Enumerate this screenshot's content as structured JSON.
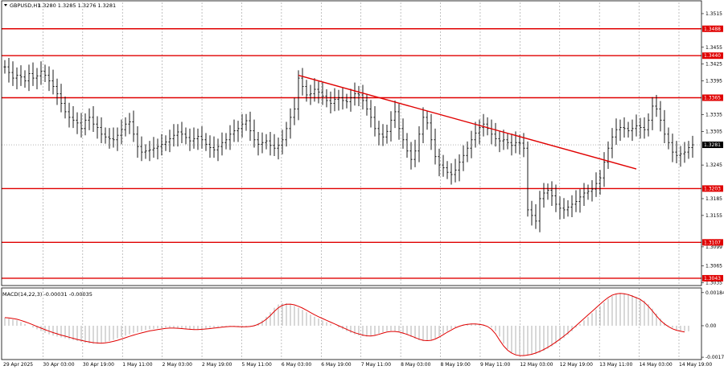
{
  "title": {
    "symbol": "GBPUSD,H1",
    "ohlc": "1.3280 1.3285 1.3276 1.3281"
  },
  "macd_label": "MACD(14,22,3) -0.00031 -0.00035",
  "colors": {
    "level": "#e00000",
    "trend": "#e00000",
    "bars": "#000000",
    "grid": "#9a9a9a",
    "macd_hist": "#b8b8b8",
    "macd_signal": "#e00000",
    "current_badge": "#000000"
  },
  "chart_data": {
    "type": "line",
    "instrument": "GBPUSD",
    "timeframe": "H1",
    "price_axis": {
      "ylim": [
        1.303,
        1.3535
      ],
      "ticks": [
        "1.3515",
        "1.3455",
        "1.3425",
        "1.3395",
        "1.3335",
        "1.3305",
        "1.3245",
        "1.3185",
        "1.3155",
        "1.3099",
        "1.3065",
        "1.3035"
      ]
    },
    "time_axis": {
      "labels": [
        "29 Apr 2025",
        "30 Apr 03:00",
        "30 Apr 19:00",
        "1 May 11:00",
        "2 May 03:00",
        "2 May 19:00",
        "5 May 11:00",
        "6 May 03:00",
        "6 May 19:00",
        "7 May 11:00",
        "8 May 03:00",
        "8 May 19:00",
        "9 May 11:00",
        "12 May 03:00",
        "12 May 19:00",
        "13 May 11:00",
        "14 May 03:00",
        "14 May 19:00"
      ]
    },
    "levels": [
      {
        "value": 1.3488,
        "label": "1.3488"
      },
      {
        "value": 1.344,
        "label": "1.3440"
      },
      {
        "value": 1.3365,
        "label": "1.3365"
      },
      {
        "value": 1.3203,
        "label": "1.3203"
      },
      {
        "value": 1.3107,
        "label": "1.3107"
      },
      {
        "value": 1.3043,
        "label": "1.3043"
      }
    ],
    "current_price": {
      "value": 1.3281,
      "label": "1.3281"
    },
    "trendline": {
      "from_index": 73,
      "from_price": 1.3405,
      "to_index": 157,
      "to_price": 1.3238
    },
    "price_series": [
      1.342,
      1.341,
      1.34,
      1.3405,
      1.3402,
      1.3395,
      1.3408,
      1.34,
      1.3404,
      1.3412,
      1.3405,
      1.3395,
      1.3385,
      1.3372,
      1.3355,
      1.334,
      1.333,
      1.3325,
      1.332,
      1.331,
      1.3325,
      1.333,
      1.3318,
      1.3312,
      1.33,
      1.3295,
      1.3292,
      1.329,
      1.3298,
      1.3308,
      1.3318,
      1.3322,
      1.33,
      1.3278,
      1.3268,
      1.327,
      1.3272,
      1.3275,
      1.3278,
      1.3282,
      1.3286,
      1.3292,
      1.3298,
      1.3304,
      1.33,
      1.3294,
      1.3288,
      1.3292,
      1.3296,
      1.329,
      1.3282,
      1.3276,
      1.3272,
      1.3278,
      1.3285,
      1.329,
      1.33,
      1.3306,
      1.331,
      1.3318,
      1.3324,
      1.3306,
      1.329,
      1.3282,
      1.3285,
      1.3288,
      1.328,
      1.3275,
      1.328,
      1.329,
      1.331,
      1.333,
      1.3345,
      1.34,
      1.3385,
      1.337,
      1.3372,
      1.338,
      1.3375,
      1.3368,
      1.336,
      1.3355,
      1.3362,
      1.3365,
      1.336,
      1.3358,
      1.3365,
      1.3372,
      1.337,
      1.336,
      1.3345,
      1.333,
      1.331,
      1.33,
      1.3295,
      1.3305,
      1.3325,
      1.334,
      1.331,
      1.329,
      1.327,
      1.3255,
      1.327,
      1.33,
      1.333,
      1.332,
      1.329,
      1.326,
      1.3245,
      1.324,
      1.3232,
      1.3228,
      1.3236,
      1.325,
      1.3262,
      1.3275,
      1.329,
      1.3302,
      1.3312,
      1.3318,
      1.331,
      1.33,
      1.3292,
      1.3288,
      1.329,
      1.3285,
      1.328,
      1.3285,
      1.3284,
      1.3275,
      1.3165,
      1.3155,
      1.3145,
      1.3185,
      1.3195,
      1.32,
      1.319,
      1.3175,
      1.3168,
      1.3165,
      1.317,
      1.3175,
      1.318,
      1.3188,
      1.3195,
      1.3198,
      1.3202,
      1.3212,
      1.3222,
      1.325,
      1.3275,
      1.3295,
      1.3308,
      1.3312,
      1.331,
      1.3306,
      1.331,
      1.3315,
      1.3312,
      1.3308,
      1.3325,
      1.335,
      1.3345,
      1.3325,
      1.33,
      1.3285,
      1.3268,
      1.3262,
      1.3265,
      1.3268,
      1.3276,
      1.3281
    ],
    "macd_axis": {
      "ylim": [
        -0.00188,
        0.0021
      ],
      "ticks": [
        "0.00184",
        "0.00",
        "-0.00175"
      ]
    },
    "macd_hist": [
      0.00045,
      0.0004,
      0.00035,
      0.0003,
      0.0002,
      0.0001,
      0.0,
      -0.0001,
      -0.0002,
      -0.0003,
      -0.0004,
      -0.00048,
      -0.00055,
      -0.0006,
      -0.00065,
      -0.0007,
      -0.00075,
      -0.0008,
      -0.00085,
      -0.0009,
      -0.00095,
      -0.00098,
      -0.001,
      -0.001,
      -0.00098,
      -0.00092,
      -0.00085,
      -0.00078,
      -0.0007,
      -0.00062,
      -0.00055,
      -0.00048,
      -0.0004,
      -0.00035,
      -0.0003,
      -0.00025,
      -0.0002,
      -0.00018,
      -0.00015,
      -0.00012,
      -0.0001,
      -0.0001,
      -0.00012,
      -0.00015,
      -0.00018,
      -0.0002,
      -0.00022,
      -0.00022,
      -0.0002,
      -0.00018,
      -0.00015,
      -0.00012,
      -0.0001,
      -8e-05,
      -5e-05,
      -3e-05,
      -2e-05,
      -4e-05,
      -6e-05,
      -8e-05,
      -6e-05,
      -2e-05,
      5e-05,
      0.00015,
      0.0003,
      0.0005,
      0.00075,
      0.001,
      0.00118,
      0.00125,
      0.00125,
      0.0012,
      0.0011,
      0.001,
      0.00088,
      0.00075,
      0.00062,
      0.0005,
      0.0004,
      0.0003,
      0.0002,
      0.0001,
      0.0,
      -0.0001,
      -0.0002,
      -0.0003,
      -0.0004,
      -0.00048,
      -0.00054,
      -0.00058,
      -0.0006,
      -0.00058,
      -0.00052,
      -0.00044,
      -0.00036,
      -0.0003,
      -0.00028,
      -0.0003,
      -0.00036,
      -0.00044,
      -0.00052,
      -0.00062,
      -0.00072,
      -0.0008,
      -0.00085,
      -0.00085,
      -0.0008,
      -0.0007,
      -0.00058,
      -0.00044,
      -0.0003,
      -0.00018,
      -8e-05,
      0.0,
      6e-05,
      0.0001,
      0.00012,
      0.00012,
      0.0001,
      6e-05,
      0.0,
      -0.0001,
      -0.0003,
      -0.0006,
      -0.001,
      -0.0013,
      -0.0015,
      -0.00162,
      -0.00168,
      -0.00168,
      -0.00166,
      -0.00162,
      -0.00158,
      -0.0015,
      -0.0014,
      -0.00128,
      -0.00115,
      -0.001,
      -0.00085,
      -0.00068,
      -0.0005,
      -0.0003,
      -0.0001,
      0.0001,
      0.0003,
      0.0005,
      0.0007,
      0.0009,
      0.0011,
      0.0013,
      0.0015,
      0.00165,
      0.00175,
      0.0018,
      0.0018,
      0.00176,
      0.0017,
      0.0016,
      0.0015,
      0.0014,
      0.0012,
      0.00095,
      0.00068,
      0.0004,
      0.00018,
      2e-05,
      -0.00012,
      -0.00022,
      -0.00028,
      -0.0003,
      -0.00031
    ],
    "macd_signal": [
      0.00045,
      0.00043,
      0.0004,
      0.00036,
      0.0003,
      0.00022,
      0.00014,
      5e-05,
      -4e-05,
      -0.00013,
      -0.00022,
      -0.0003,
      -0.00038,
      -0.00045,
      -0.00052,
      -0.00058,
      -0.00064,
      -0.0007,
      -0.00076,
      -0.00081,
      -0.00086,
      -0.0009,
      -0.00094,
      -0.00096,
      -0.00097,
      -0.00095,
      -0.00092,
      -0.00087,
      -0.00081,
      -0.00074,
      -0.00067,
      -0.00059,
      -0.00052,
      -0.00046,
      -0.0004,
      -0.00034,
      -0.00029,
      -0.00025,
      -0.00021,
      -0.00018,
      -0.00015,
      -0.00013,
      -0.00013,
      -0.00014,
      -0.00016,
      -0.00018,
      -0.0002,
      -0.00021,
      -0.00021,
      -0.0002,
      -0.00018,
      -0.00016,
      -0.00013,
      -0.00011,
      -8e-05,
      -6e-05,
      -4e-05,
      -4e-05,
      -5e-05,
      -6e-05,
      -6e-05,
      -4e-05,
      0.0,
      8e-05,
      0.0002,
      0.00036,
      0.00056,
      0.0008,
      0.001,
      0.00113,
      0.00119,
      0.0012,
      0.00116,
      0.00108,
      0.00098,
      0.00086,
      0.00073,
      0.00061,
      0.0005,
      0.0004,
      0.0003,
      0.0002,
      0.0001,
      0.0,
      -0.0001,
      -0.0002,
      -0.0003,
      -0.00039,
      -0.00046,
      -0.00052,
      -0.00056,
      -0.00057,
      -0.00054,
      -0.00048,
      -0.00041,
      -0.00035,
      -0.00032,
      -0.00032,
      -0.00035,
      -0.00041,
      -0.00048,
      -0.00057,
      -0.00066,
      -0.00075,
      -0.00081,
      -0.00083,
      -0.00081,
      -0.00074,
      -0.00063,
      -0.0005,
      -0.00036,
      -0.00024,
      -0.00012,
      -3e-05,
      4e-05,
      8e-05,
      0.0001,
      0.0001,
      8e-05,
      4e-05,
      -4e-05,
      -0.0002,
      -0.00045,
      -0.0008,
      -0.00112,
      -0.00136,
      -0.00152,
      -0.00162,
      -0.00166,
      -0.00166,
      -0.00163,
      -0.00159,
      -0.00152,
      -0.00143,
      -0.00132,
      -0.0012,
      -0.00106,
      -0.00091,
      -0.00075,
      -0.00058,
      -0.0004,
      -0.0002,
      0.0,
      0.0002,
      0.0004,
      0.0006,
      0.0008,
      0.001,
      0.0012,
      0.0014,
      0.00157,
      0.0017,
      0.00177,
      0.0018,
      0.00178,
      0.00173,
      0.00165,
      0.00156,
      0.00146,
      0.0013,
      0.00108,
      0.00082,
      0.00055,
      0.0003,
      0.0001,
      -5e-05,
      -0.00017,
      -0.00025,
      -0.0003,
      -0.00035
    ]
  }
}
